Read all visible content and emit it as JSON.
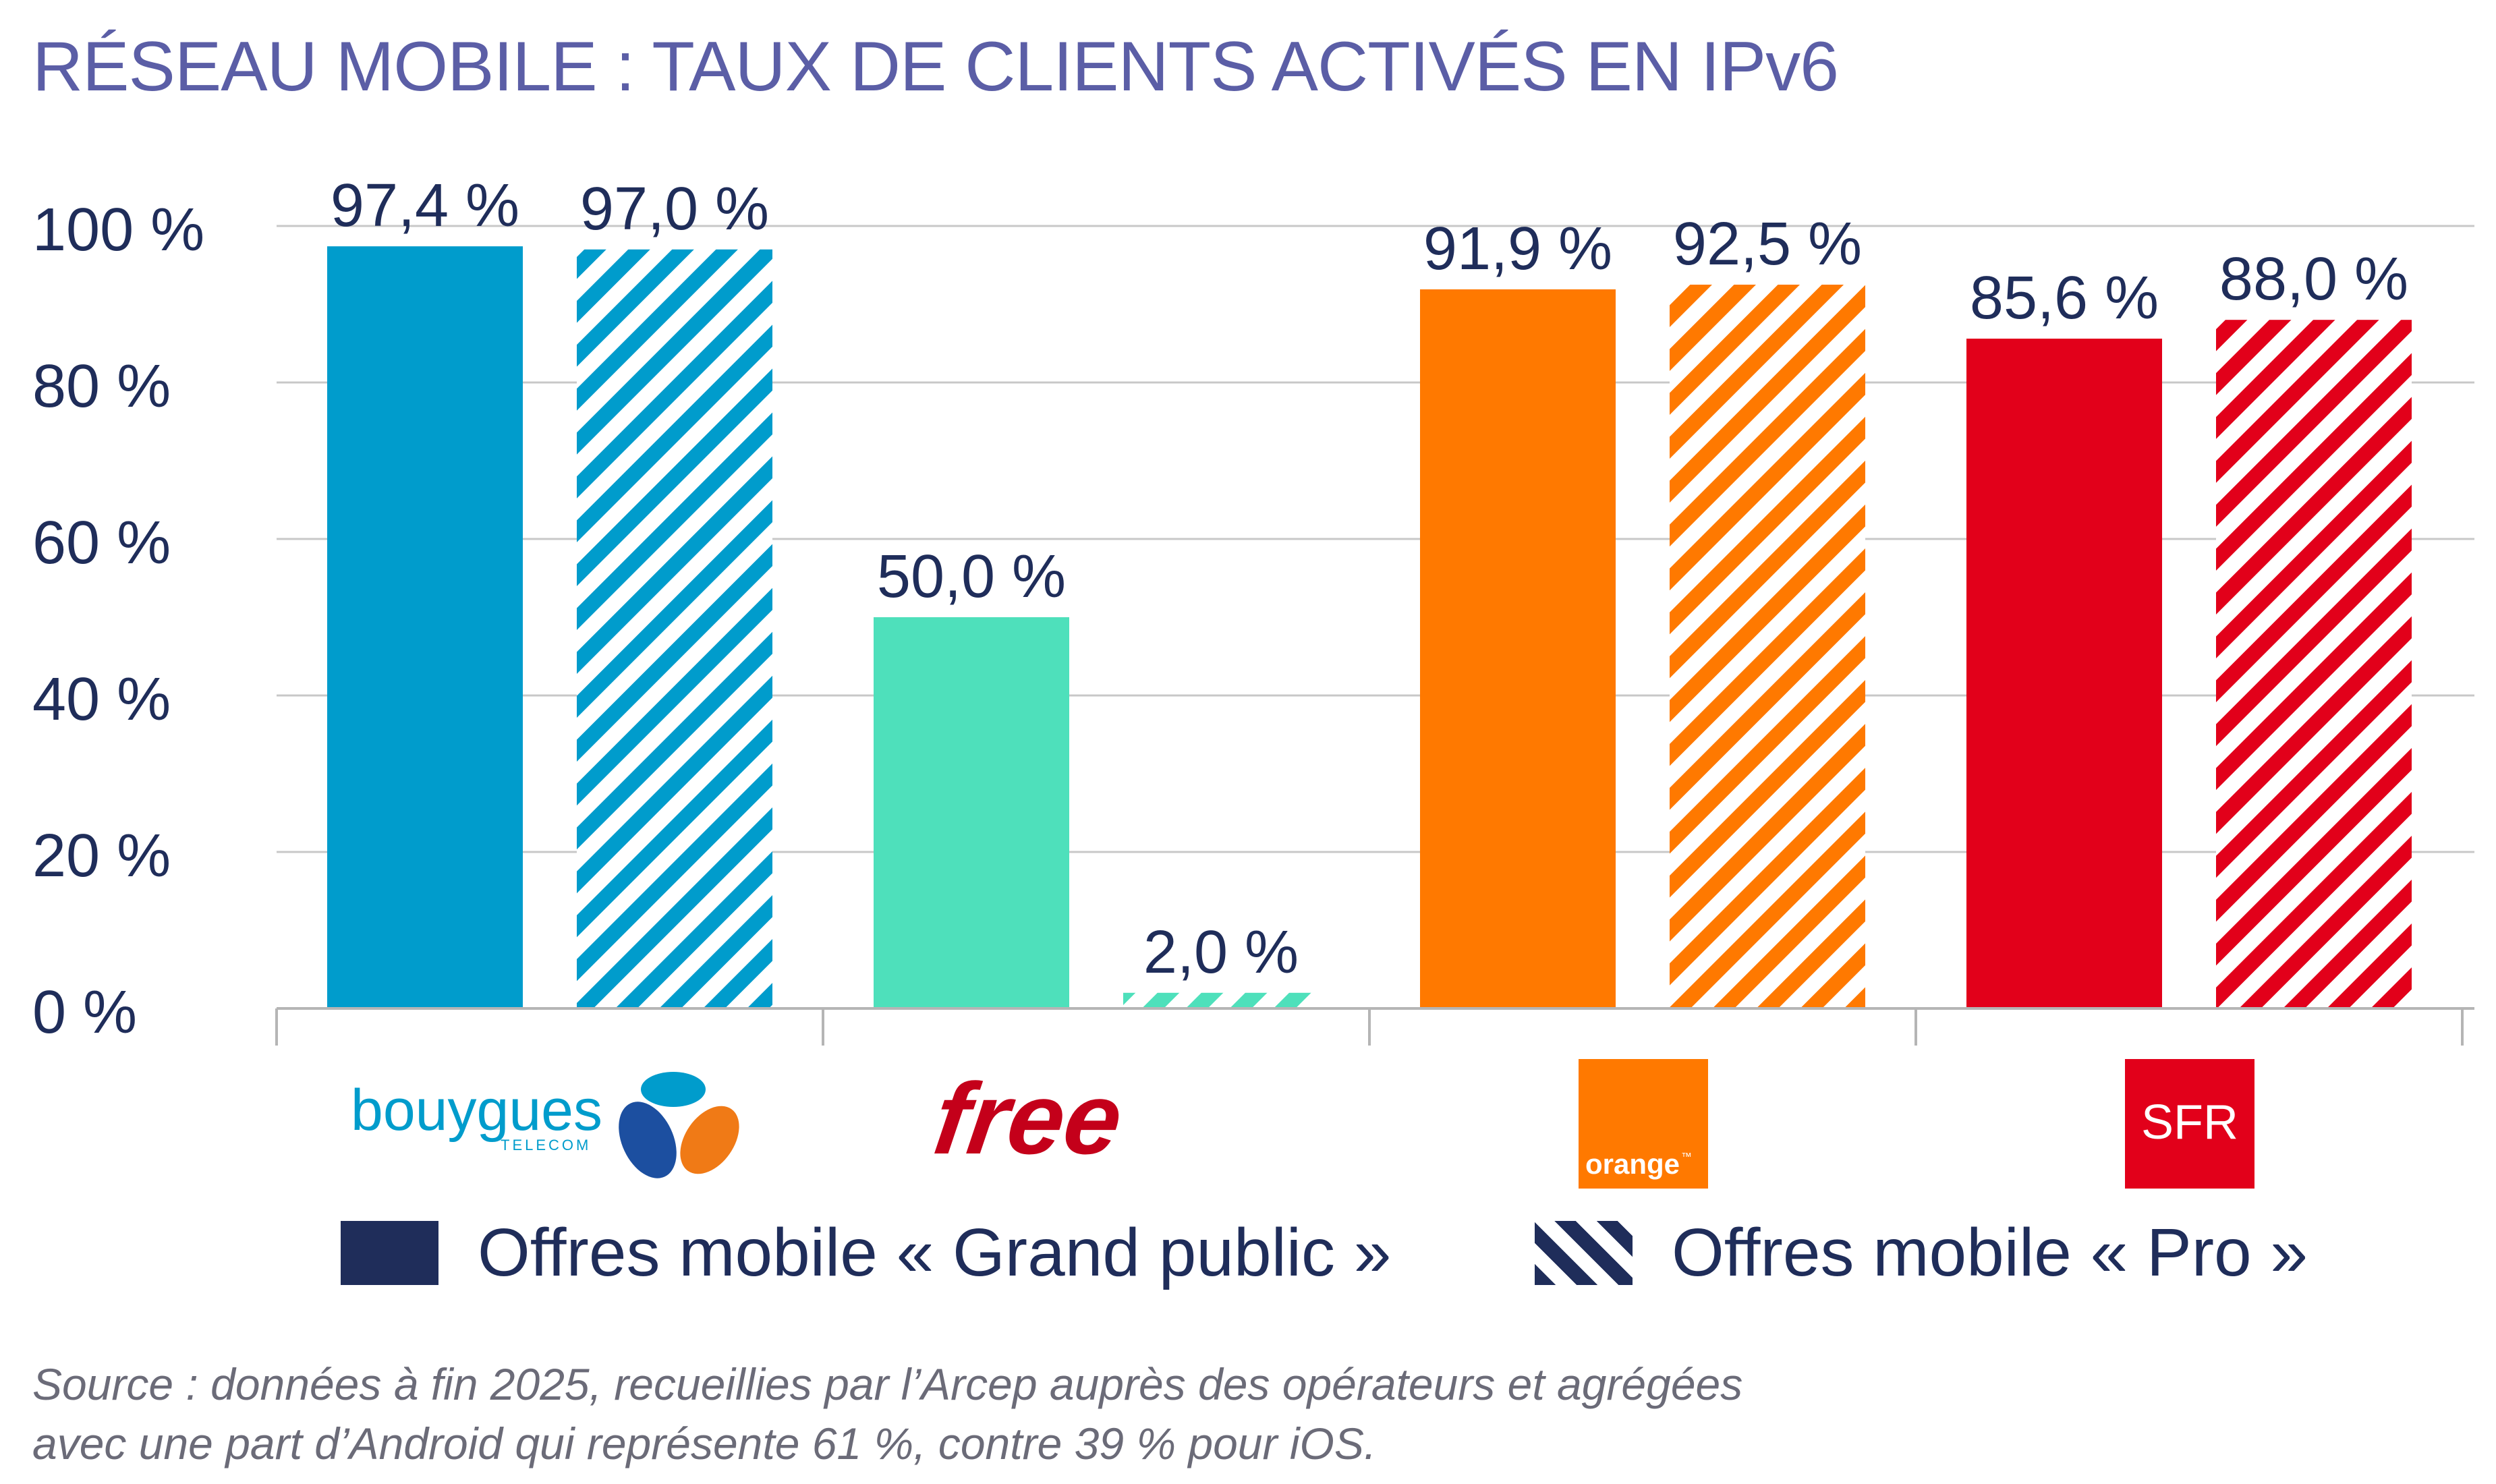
{
  "title": "RÉSEAU MOBILE : TAUX DE CLIENTS ACTIVÉS EN IPv6",
  "chart_data": {
    "type": "bar",
    "categories": [
      "bouygues",
      "free",
      "orange",
      "SFR"
    ],
    "series": [
      {
        "name": "Offres mobile « Grand public »",
        "pattern": "solid",
        "values": [
          97.4,
          50.0,
          91.9,
          85.6
        ]
      },
      {
        "name": "Offres mobile « Pro »",
        "pattern": "hatched",
        "values": [
          97.0,
          2.0,
          92.5,
          88.0
        ]
      }
    ],
    "value_labels": {
      "grand_public": [
        "97,4 %",
        "50,0 %",
        "91,9 %",
        "85,6 %"
      ],
      "pro": [
        "97,0 %",
        "2,0 %",
        "92,5 %",
        "88,0 %"
      ]
    },
    "category_colors": [
      "#009ccc",
      "#4ee0bb",
      "#ff7900",
      "#e2001a"
    ],
    "yticks": [
      "0 %",
      "20 %",
      "40 %",
      "60 %",
      "80 %",
      "100 %"
    ],
    "ylim": [
      0,
      100
    ],
    "grid": true,
    "legend_position": "bottom"
  },
  "logos": {
    "bouygues": {
      "text": "bouygues",
      "subtext": "TELECOM",
      "icon": "bouygues-logo",
      "color": "#009ccc"
    },
    "free": {
      "text": "free",
      "icon": "free-logo",
      "color": "#c4001a"
    },
    "orange": {
      "text": "orange",
      "tm": "™",
      "icon": "orange-logo",
      "color": "#ff7900"
    },
    "sfr": {
      "text": "SFR",
      "icon": "sfr-logo",
      "color": "#e2001a"
    }
  },
  "legend": {
    "grand_public": "Offres mobile « Grand public »",
    "pro": "Offres mobile « Pro »",
    "color": "#1f2d5a"
  },
  "source": {
    "line1": "Source : données à fin 2025, recueillies par l’Arcep auprès des opérateurs et agrégées",
    "line2": "avec une part d’Android qui représente 61 %, contre 39 % pour iOS."
  }
}
